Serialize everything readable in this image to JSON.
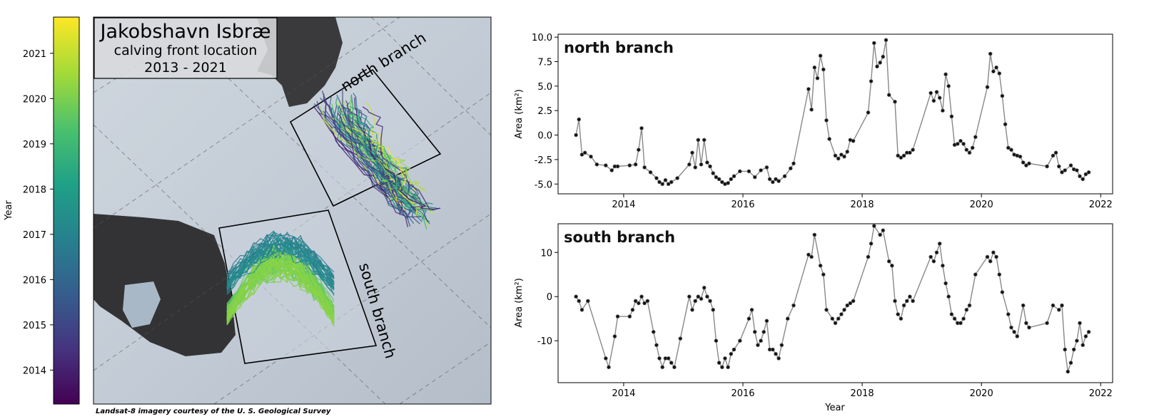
{
  "colorbar": {
    "label": "Year",
    "ticks": [
      "2014",
      "2015",
      "2016",
      "2017",
      "2018",
      "2019",
      "2020",
      "2021"
    ],
    "range": [
      2013.25,
      2021.8
    ]
  },
  "map": {
    "title_line1": "Jakobshavn Isbræ",
    "title_line2": "calving front location",
    "title_line3": "2013 - 2021",
    "north_label": "north branch",
    "south_label": "south branch",
    "credit": "Landsat-8 imagery courtesy of the U. S. Geological Survey"
  },
  "chart_data": [
    {
      "type": "line",
      "title": "north branch",
      "xlabel": "",
      "ylabel": "Area (km²)",
      "xlim": [
        2012.9,
        2022.2
      ],
      "ylim": [
        -6,
        10.3
      ],
      "xticks": [
        "2014",
        "2016",
        "2018",
        "2020",
        "2022"
      ],
      "yticks": [
        "10.0",
        "7.5",
        "5.0",
        "2.5",
        "0.0",
        "-2.5",
        "-5.0"
      ],
      "ytick_values": [
        10,
        7.5,
        5,
        2.5,
        0,
        -2.5,
        -5
      ],
      "x": [
        2013.2,
        2013.25,
        2013.3,
        2013.35,
        2013.45,
        2013.55,
        2013.7,
        2013.8,
        2013.85,
        2013.9,
        2014.1,
        2014.2,
        2014.25,
        2014.3,
        2014.35,
        2014.45,
        2014.55,
        2014.6,
        2014.65,
        2014.7,
        2014.75,
        2014.8,
        2014.9,
        2015.1,
        2015.15,
        2015.2,
        2015.25,
        2015.3,
        2015.35,
        2015.4,
        2015.45,
        2015.5,
        2015.55,
        2015.6,
        2015.65,
        2015.7,
        2015.75,
        2015.8,
        2015.85,
        2015.95,
        2016.1,
        2016.2,
        2016.3,
        2016.4,
        2016.45,
        2016.5,
        2016.55,
        2016.6,
        2016.7,
        2016.8,
        2016.85,
        2017.1,
        2017.15,
        2017.2,
        2017.25,
        2017.3,
        2017.35,
        2017.4,
        2017.45,
        2017.55,
        2017.6,
        2017.65,
        2017.7,
        2017.75,
        2017.8,
        2017.85,
        2018.1,
        2018.15,
        2018.2,
        2018.25,
        2018.3,
        2018.35,
        2018.4,
        2018.45,
        2018.55,
        2018.6,
        2018.65,
        2018.7,
        2018.75,
        2018.8,
        2018.85,
        2019.15,
        2019.2,
        2019.25,
        2019.3,
        2019.35,
        2019.4,
        2019.45,
        2019.5,
        2019.55,
        2019.6,
        2019.65,
        2019.7,
        2019.75,
        2019.8,
        2019.85,
        2019.9,
        2020.1,
        2020.15,
        2020.2,
        2020.25,
        2020.3,
        2020.35,
        2020.4,
        2020.45,
        2020.5,
        2020.55,
        2020.6,
        2020.65,
        2020.7,
        2020.75,
        2020.8,
        2021.1,
        2021.2,
        2021.25,
        2021.3,
        2021.35,
        2021.4,
        2021.5,
        2021.55,
        2021.6,
        2021.65,
        2021.7,
        2021.75,
        2021.8
      ],
      "y": [
        0,
        1.6,
        -2,
        -1.8,
        -2.2,
        -3,
        -3.1,
        -3.6,
        -3.2,
        -3.2,
        -3.1,
        -3,
        -1.5,
        0.7,
        -3.3,
        -3.8,
        -4.4,
        -4.8,
        -5,
        -4.6,
        -5,
        -4.8,
        -4.4,
        -3,
        -1.8,
        -3.3,
        -0.5,
        -3,
        -0.5,
        -2.8,
        -3.2,
        -3.9,
        -4.3,
        -4.5,
        -4.8,
        -5,
        -4.9,
        -4.5,
        -4.2,
        -3.7,
        -3.7,
        -4.3,
        -3.6,
        -3.3,
        -4.5,
        -4.8,
        -4.5,
        -4.7,
        -4.2,
        -3.4,
        -2.9,
        4.7,
        2.6,
        6.9,
        5.8,
        8.1,
        6.7,
        1.5,
        -0.4,
        -2.1,
        -2.4,
        -2,
        -2.2,
        -1.7,
        -0.5,
        -0.6,
        2.3,
        5.5,
        9.4,
        7,
        7.4,
        8,
        9.7,
        4.1,
        3.4,
        -2.1,
        -2.3,
        -2.1,
        -1.8,
        -1.8,
        -1.5,
        4.3,
        3.5,
        4.4,
        3.8,
        2.5,
        6.2,
        5,
        1.9,
        -1,
        -0.9,
        -0.6,
        -0.9,
        -1.5,
        -1.8,
        -1.3,
        -0.2,
        4.9,
        8.3,
        6.5,
        6.9,
        6.3,
        4,
        1.1,
        -1.3,
        -1.5,
        -2,
        -2.1,
        -2.2,
        -2.8,
        -3.1,
        -2.9,
        -3.2,
        -2.1,
        -1.8,
        -3.2,
        -3.8,
        -3.6,
        -3.1,
        -3.5,
        -3.6,
        -4.2,
        -4.5,
        -4,
        -3.8
      ]
    },
    {
      "type": "line",
      "title": "south branch",
      "xlabel": "Year",
      "ylabel": "Area (km²)",
      "xlim": [
        2012.9,
        2022.2
      ],
      "ylim": [
        -19.5,
        16.5
      ],
      "xticks": [
        "2014",
        "2016",
        "2018",
        "2020",
        "2022"
      ],
      "yticks": [
        "10",
        "0",
        "-10"
      ],
      "ytick_values": [
        10,
        0,
        -10
      ],
      "x": [
        2013.2,
        2013.25,
        2013.3,
        2013.4,
        2013.7,
        2013.75,
        2013.85,
        2013.9,
        2014.1,
        2014.15,
        2014.2,
        2014.25,
        2014.3,
        2014.35,
        2014.4,
        2014.5,
        2014.55,
        2014.6,
        2014.65,
        2014.7,
        2014.75,
        2014.8,
        2014.85,
        2014.95,
        2015.1,
        2015.15,
        2015.2,
        2015.25,
        2015.3,
        2015.35,
        2015.4,
        2015.45,
        2015.5,
        2015.55,
        2015.6,
        2015.65,
        2015.7,
        2015.75,
        2015.8,
        2015.85,
        2015.95,
        2016.1,
        2016.15,
        2016.2,
        2016.25,
        2016.3,
        2016.35,
        2016.4,
        2016.45,
        2016.5,
        2016.55,
        2016.6,
        2016.65,
        2016.75,
        2016.85,
        2017.1,
        2017.15,
        2017.2,
        2017.3,
        2017.35,
        2017.4,
        2017.5,
        2017.55,
        2017.6,
        2017.65,
        2017.7,
        2017.75,
        2017.8,
        2017.85,
        2018.1,
        2018.15,
        2018.2,
        2018.3,
        2018.35,
        2018.45,
        2018.5,
        2018.55,
        2018.6,
        2018.65,
        2018.7,
        2018.75,
        2018.8,
        2018.85,
        2019.15,
        2019.2,
        2019.25,
        2019.3,
        2019.35,
        2019.4,
        2019.45,
        2019.5,
        2019.55,
        2019.6,
        2019.65,
        2019.7,
        2019.75,
        2019.8,
        2019.9,
        2020.1,
        2020.15,
        2020.2,
        2020.25,
        2020.3,
        2020.35,
        2020.45,
        2020.5,
        2020.55,
        2020.6,
        2020.7,
        2020.75,
        2020.8,
        2021.1,
        2021.2,
        2021.3,
        2021.35,
        2021.4,
        2021.45,
        2021.5,
        2021.55,
        2021.6,
        2021.65,
        2021.7,
        2021.75,
        2021.8
      ],
      "y": [
        0,
        -1,
        -3,
        -1,
        -14,
        -16,
        -9,
        -4.5,
        -4.5,
        -3,
        -1,
        -1.5,
        0,
        -1.5,
        -1,
        -8,
        -11,
        -14,
        -16,
        -14,
        -14,
        -15,
        -16,
        -9.5,
        0,
        -3,
        -1,
        0,
        -0.5,
        2,
        0,
        -1,
        -3,
        -10,
        -15,
        -16,
        -14,
        -16,
        -13,
        -12,
        -10,
        -5,
        -3,
        -8,
        -11,
        -10,
        -8,
        -5.5,
        -12,
        -12,
        -13,
        -14,
        -11,
        -5,
        -2,
        9.5,
        9,
        14,
        7,
        5,
        -3,
        -5,
        -6,
        -5,
        -4,
        -3,
        -2,
        -1.5,
        -1,
        9,
        12,
        16,
        14,
        15,
        8,
        7,
        -1,
        -4,
        -5,
        -2,
        -1,
        0,
        -1,
        9,
        8,
        10,
        12,
        7,
        3,
        0,
        -4,
        -5,
        -6,
        -6,
        -5,
        -3,
        -2,
        5,
        9,
        8,
        10,
        9,
        5,
        1,
        -4,
        -7,
        -8,
        -9,
        -2,
        -6,
        -7,
        -6,
        -2,
        -3,
        -2,
        -12,
        -17,
        -15,
        -12,
        -10,
        -6,
        -11,
        -9,
        -8
      ]
    }
  ]
}
